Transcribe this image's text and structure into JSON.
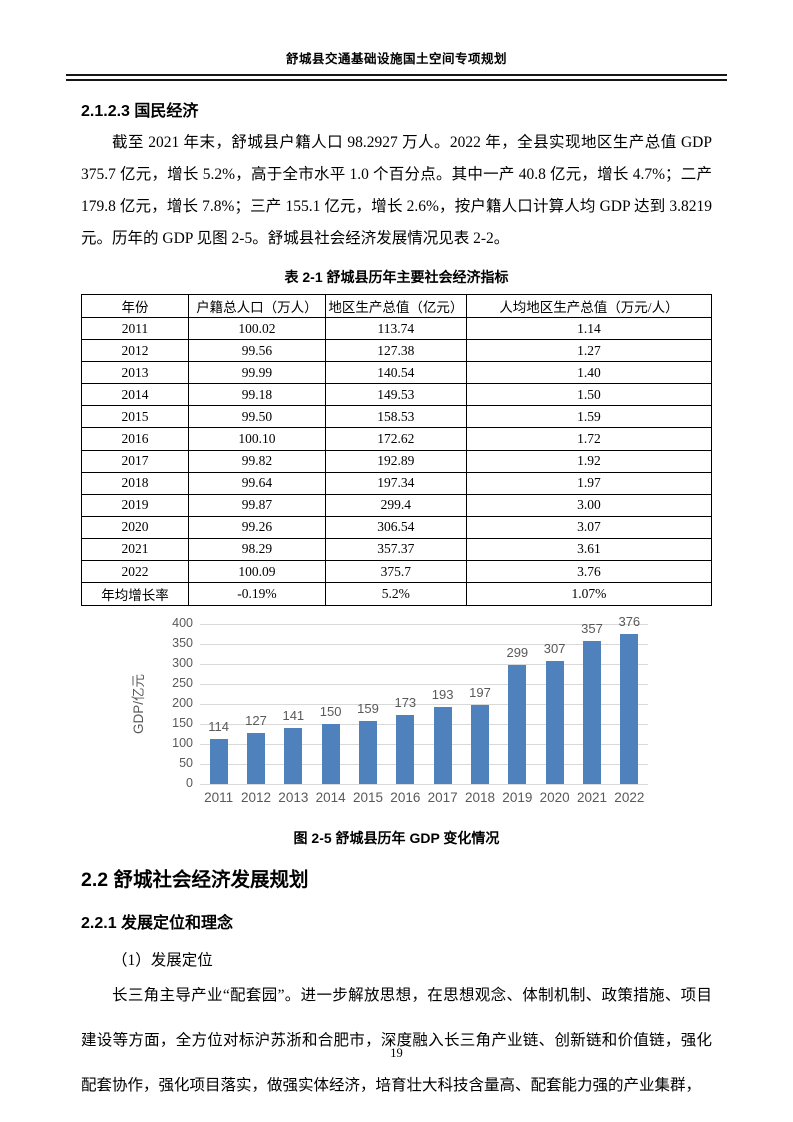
{
  "page": {
    "header_title": "舒城县交通基础设施国土空间专项规划",
    "page_number": "19"
  },
  "section_economy": {
    "heading": "2.1.2.3 国民经济",
    "paragraph": "截至 2021 年末，舒城县户籍人口 98.2927 万人。2022 年，全县实现地区生产总值 GDP 375.7 亿元，增长 5.2%，高于全市水平 1.0 个百分点。其中一产 40.8 亿元，增长 4.7%；二产 179.8 亿元，增长 7.8%；三产 155.1 亿元，增长 2.6%，按户籍人口计算人均 GDP 达到 3.8219 元。历年的 GDP 见图 2-5。舒城县社会经济发展情况见表 2-2。"
  },
  "table": {
    "caption": "表 2-1 舒城县历年主要社会经济指标",
    "headers": [
      "年份",
      "户籍总人口（万人）",
      "地区生产总值（亿元）",
      "人均地区生产总值（万元/人）"
    ],
    "col_widths_pct": [
      17,
      21.7,
      22.4,
      38.9
    ],
    "rows": [
      [
        "2011",
        "100.02",
        "113.74",
        "1.14"
      ],
      [
        "2012",
        "99.56",
        "127.38",
        "1.27"
      ],
      [
        "2013",
        "99.99",
        "140.54",
        "1.40"
      ],
      [
        "2014",
        "99.18",
        "149.53",
        "1.50"
      ],
      [
        "2015",
        "99.50",
        "158.53",
        "1.59"
      ],
      [
        "2016",
        "100.10",
        "172.62",
        "1.72"
      ],
      [
        "2017",
        "99.82",
        "192.89",
        "1.92"
      ],
      [
        "2018",
        "99.64",
        "197.34",
        "1.97"
      ],
      [
        "2019",
        "99.87",
        "299.4",
        "3.00"
      ],
      [
        "2020",
        "99.26",
        "306.54",
        "3.07"
      ],
      [
        "2021",
        "98.29",
        "357.37",
        "3.61"
      ],
      [
        "2022",
        "100.09",
        "375.7",
        "3.76"
      ],
      [
        "年均增长率",
        "-0.19%",
        "5.2%",
        "1.07%"
      ]
    ]
  },
  "chart_data": {
    "type": "bar",
    "categories": [
      "2011",
      "2012",
      "2013",
      "2014",
      "2015",
      "2016",
      "2017",
      "2018",
      "2019",
      "2020",
      "2021",
      "2022"
    ],
    "values": [
      114,
      127,
      141,
      150,
      159,
      173,
      193,
      197,
      299,
      307,
      357,
      376
    ],
    "title": "",
    "xlabel": "",
    "ylabel": "GDP/亿元",
    "ylim": [
      0,
      400
    ],
    "ytick_step": 50,
    "grid": true,
    "legend": false,
    "bar_color": "#4f81bd",
    "gridline_color": "#d9d9d9",
    "label_color": "#595959",
    "caption": "图 2-5 舒城县历年 GDP 变化情况"
  },
  "section_plan": {
    "heading": "2.2 舒城社会经济发展规划",
    "subheading": "2.2.1 发展定位和理念",
    "item_label": "（1）发展定位",
    "paragraph": "长三角主导产业“配套园”。进一步解放思想，在思想观念、体制机制、政策措施、项目建设等方面，全方位对标沪苏浙和合肥市，深度融入长三角产业链、创新链和价值链，强化配套协作，强化项目落实，做强实体经济，培育壮大科技含量高、配套能力强的产业集群，"
  }
}
